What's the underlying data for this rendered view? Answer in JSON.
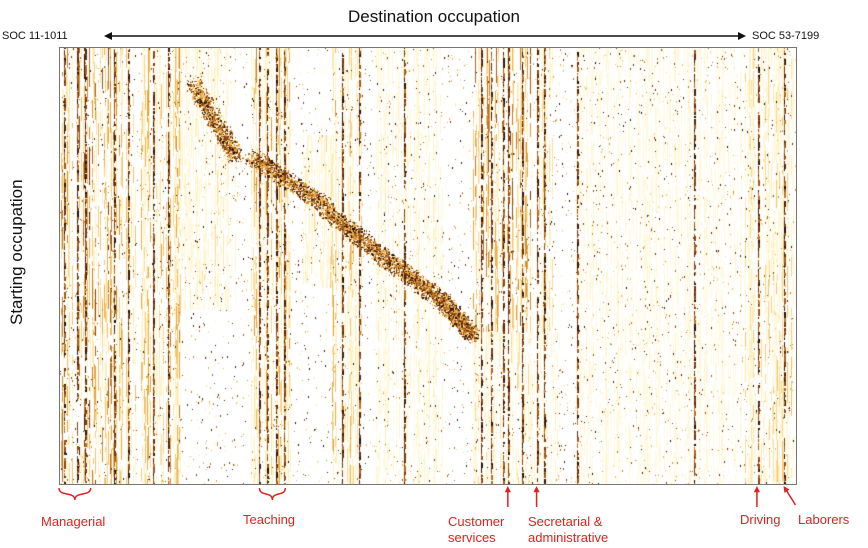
{
  "title": "Destination occupation",
  "xaxis": {
    "start_label": "SOC 11-1011",
    "end_label": "SOC 53-7199"
  },
  "ylabel": "Starting occupation",
  "colors": {
    "low": "#fff3c4",
    "mid": "#e8a53a",
    "high": "#7a3812",
    "max": "#1a0a05",
    "annotation": "#e0211f",
    "frame": "#777777"
  },
  "chart_data": {
    "type": "heatmap",
    "title": "Destination occupation",
    "xlabel": "Destination occupation",
    "ylabel": "Starting occupation",
    "x_range": [
      "SOC 11-1011",
      "SOC 53-7199"
    ],
    "y_range": [
      "SOC 11-1011",
      "SOC 53-7199"
    ],
    "color_scale": "white (no transitions) to yellow, orange and dark brown (many transitions)",
    "annotations": [
      {
        "label": "Managerial",
        "marker": "bracket",
        "x_fraction_start": 0.0,
        "x_fraction_end": 0.043
      },
      {
        "label": "Teaching",
        "marker": "bracket",
        "x_fraction_start": 0.272,
        "x_fraction_end": 0.307
      },
      {
        "label": "Customer services",
        "marker": "arrow",
        "x_fraction": 0.609
      },
      {
        "label": "Secretarial & administrative",
        "marker": "arrow",
        "x_fraction": 0.648
      },
      {
        "label": "Driving",
        "marker": "arrow",
        "x_fraction": 0.947
      },
      {
        "label": "Laborers",
        "marker": "arrow",
        "x_fraction": 0.983
      }
    ],
    "bands": [
      {
        "x0": 0.0,
        "x1": 0.085,
        "strength": 0.85,
        "y0": 0.0,
        "y1": 1.0
      },
      {
        "x0": 0.085,
        "x1": 0.105,
        "strength": 0.5,
        "y0": 0.0,
        "y1": 1.0
      },
      {
        "x0": 0.11,
        "x1": 0.165,
        "strength": 0.7,
        "y0": 0.0,
        "y1": 1.0
      },
      {
        "x0": 0.165,
        "x1": 0.24,
        "strength": 0.35,
        "y0": 0.0,
        "y1": 0.6
      },
      {
        "x0": 0.26,
        "x1": 0.315,
        "strength": 0.65,
        "y0": 0.0,
        "y1": 1.0
      },
      {
        "x0": 0.33,
        "x1": 0.37,
        "strength": 0.45,
        "y0": 0.2,
        "y1": 0.55
      },
      {
        "x0": 0.37,
        "x1": 0.41,
        "strength": 0.55,
        "y0": 0.0,
        "y1": 1.0
      },
      {
        "x0": 0.43,
        "x1": 0.52,
        "strength": 0.3,
        "y0": 0.0,
        "y1": 1.0
      },
      {
        "x0": 0.56,
        "x1": 0.64,
        "strength": 0.75,
        "y0": 0.0,
        "y1": 0.65
      },
      {
        "x0": 0.56,
        "x1": 0.68,
        "strength": 0.35,
        "y0": 0.65,
        "y1": 1.0
      },
      {
        "x0": 0.64,
        "x1": 0.67,
        "strength": 0.55,
        "y0": 0.0,
        "y1": 0.65
      },
      {
        "x0": 0.7,
        "x1": 0.93,
        "strength": 0.25,
        "y0": 0.0,
        "y1": 1.0
      },
      {
        "x0": 0.93,
        "x1": 1.0,
        "strength": 0.45,
        "y0": 0.0,
        "y1": 1.0
      }
    ],
    "diagonal_clusters": [
      {
        "x0": 0.18,
        "x1": 0.24,
        "y0": 0.08,
        "y1": 0.25
      },
      {
        "x0": 0.26,
        "x1": 0.36,
        "y0": 0.25,
        "y1": 0.36
      },
      {
        "x0": 0.36,
        "x1": 0.44,
        "y0": 0.37,
        "y1": 0.48
      },
      {
        "x0": 0.44,
        "x1": 0.52,
        "y0": 0.48,
        "y1": 0.58
      },
      {
        "x0": 0.52,
        "x1": 0.56,
        "y0": 0.58,
        "y1": 0.66
      }
    ],
    "dark_columns": [
      0.007,
      0.024,
      0.035,
      0.075,
      0.093,
      0.128,
      0.148,
      0.271,
      0.282,
      0.294,
      0.305,
      0.383,
      0.407,
      0.468,
      0.572,
      0.585,
      0.601,
      0.609,
      0.628,
      0.648,
      0.657,
      0.702,
      0.861,
      0.947,
      0.983
    ]
  }
}
